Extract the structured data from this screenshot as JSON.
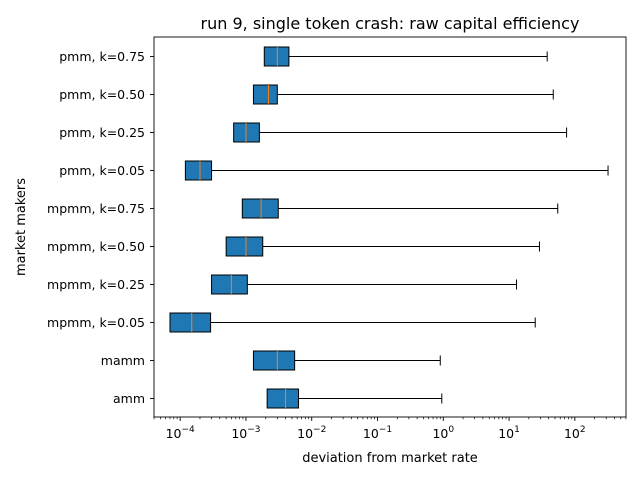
{
  "chart_data": {
    "type": "box",
    "orientation": "horizontal",
    "title": "run 9, single token crash: raw capital efficiency",
    "xlabel": "deviation from market rate",
    "ylabel": "market makers",
    "xscale": "log",
    "xlim": [
      4e-05,
      600
    ],
    "x_ticks": [
      {
        "base": "10",
        "exp": "−4",
        "value": 0.0001
      },
      {
        "base": "10",
        "exp": "−3",
        "value": 0.001
      },
      {
        "base": "10",
        "exp": "−2",
        "value": 0.01
      },
      {
        "base": "10",
        "exp": "−1",
        "value": 0.1
      },
      {
        "base": "10",
        "exp": "0",
        "value": 1
      },
      {
        "base": "10",
        "exp": "1",
        "value": 10
      },
      {
        "base": "10",
        "exp": "2",
        "value": 100
      }
    ],
    "grid": false,
    "legend": "none",
    "colors": {
      "box": "#1f77b4",
      "median": "#ff7f0e",
      "line": "#000000"
    },
    "categories": [
      "pmm, k=0.75",
      "pmm, k=0.50",
      "pmm, k=0.25",
      "pmm, k=0.05",
      "mpmm, k=0.75",
      "mpmm, k=0.50",
      "mpmm, k=0.25",
      "mpmm, k=0.05",
      "mamm",
      "amm"
    ],
    "boxes": [
      {
        "q1": 0.0019,
        "median": 0.003,
        "q3": 0.0045,
        "whisker_high": 38
      },
      {
        "q1": 0.0013,
        "median": 0.0022,
        "q3": 0.003,
        "whisker_high": 47
      },
      {
        "q1": 0.00065,
        "median": 0.001,
        "q3": 0.0016,
        "whisker_high": 75
      },
      {
        "q1": 0.00012,
        "median": 0.0002,
        "q3": 0.0003,
        "whisker_high": 320
      },
      {
        "q1": 0.00088,
        "median": 0.0017,
        "q3": 0.0031,
        "whisker_high": 55
      },
      {
        "q1": 0.0005,
        "median": 0.001,
        "q3": 0.0018,
        "whisker_high": 29
      },
      {
        "q1": 0.0003,
        "median": 0.0006,
        "q3": 0.00105,
        "whisker_high": 13
      },
      {
        "q1": 7e-05,
        "median": 0.00015,
        "q3": 0.00029,
        "whisker_high": 25
      },
      {
        "q1": 0.0013,
        "median": 0.003,
        "q3": 0.0055,
        "whisker_high": 0.9
      },
      {
        "q1": 0.0021,
        "median": 0.004,
        "q3": 0.0063,
        "whisker_high": 0.95
      }
    ]
  }
}
